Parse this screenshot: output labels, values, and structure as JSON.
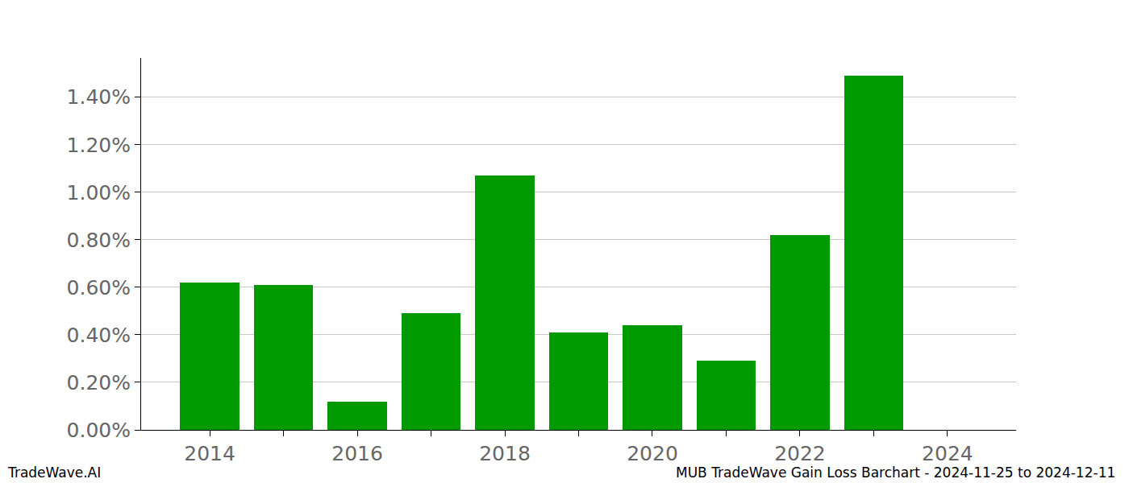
{
  "chart_data": {
    "type": "bar",
    "x": [
      2014,
      2015,
      2016,
      2017,
      2018,
      2019,
      2020,
      2021,
      2022,
      2023
    ],
    "values": [
      0.62,
      0.61,
      0.12,
      0.49,
      1.07,
      0.41,
      0.44,
      0.29,
      0.82,
      1.49
    ],
    "color": "#009900",
    "xlim": [
      2013.07,
      2024.93
    ],
    "xticks": [
      2014,
      2016,
      2018,
      2020,
      2022,
      2024
    ],
    "ylim": [
      0,
      1.565
    ],
    "yticks": [
      {
        "value": 0,
        "label": "0.00%"
      },
      {
        "value": 0.2,
        "label": "0.20%"
      },
      {
        "value": 0.4,
        "label": "0.40%"
      },
      {
        "value": 0.6,
        "label": "0.60%"
      },
      {
        "value": 0.8,
        "label": "0.80%"
      },
      {
        "value": 1.0,
        "label": "1.00%"
      },
      {
        "value": 1.2,
        "label": "1.20%"
      },
      {
        "value": 1.4,
        "label": "1.40%"
      }
    ],
    "grid": true,
    "annotations": [
      "TradeWave.AI",
      "MUB TradeWave Gain Loss Barchart - 2024-11-25 to 2024-12-11"
    ]
  }
}
